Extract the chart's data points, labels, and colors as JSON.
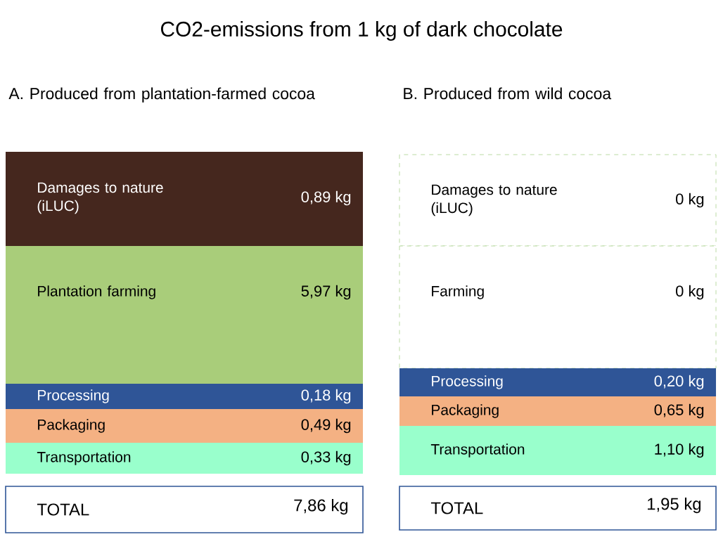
{
  "chart_data": [
    {
      "type": "other",
      "title": "CO2-emissions from 1 kg of dark chocolate",
      "subtitle": "A. Produced from plantation-farmed cocoa",
      "categories": [
        "Damages to nature (iLUC)",
        "Plantation farming",
        "Processing",
        "Packaging",
        "Transportation"
      ],
      "values": [
        0.89,
        5.97,
        0.18,
        0.49,
        0.33
      ],
      "value_labels": [
        "0,89 kg",
        "5,97 kg",
        "0,18 kg",
        "0,49 kg",
        "0,33 kg"
      ],
      "colors": [
        "#45271e",
        "#a9cd7a",
        "#2f5597",
        "#f4b183",
        "#99ffcc"
      ],
      "totals": [
        "7,86 kg"
      ],
      "annotations": [
        "TOTAL"
      ]
    },
    {
      "type": "other",
      "subtitle": "B. Produced from wild cocoa",
      "categories": [
        "Damages to nature (iLUC)",
        "Farming",
        "Processing",
        "Packaging",
        "Transportation"
      ],
      "values": [
        0,
        0,
        0.2,
        0.65,
        1.1
      ],
      "value_labels": [
        "0 kg",
        "0 kg",
        "0,20 kg",
        "0,65 kg",
        "1,10 kg"
      ],
      "colors": [
        "#ffffff",
        "#ffffff",
        "#2f5597",
        "#f4b183",
        "#99ffcc"
      ],
      "totals": [
        "1,95 kg"
      ],
      "annotations": [
        "TOTAL"
      ]
    }
  ]
}
